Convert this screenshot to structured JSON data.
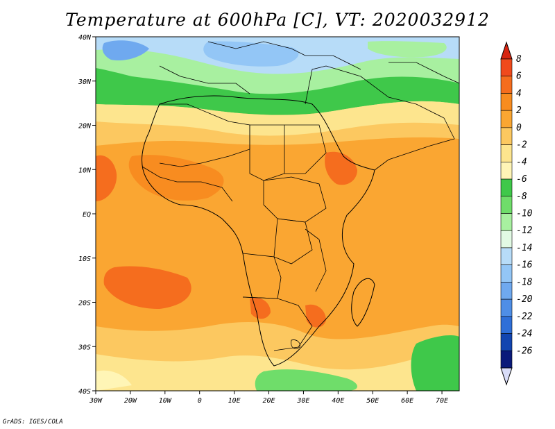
{
  "title": "Temperature at 600hPa [C], VT: 2020032912",
  "credit": "GrADS: IGES/COLA",
  "map": {
    "lon_ticks": [
      "30W",
      "20W",
      "10W",
      "0",
      "10E",
      "20E",
      "30E",
      "40E",
      "50E",
      "60E",
      "70E"
    ],
    "lat_ticks": [
      "40N",
      "30N",
      "20N",
      "10N",
      "EQ",
      "10S",
      "20S",
      "30S",
      "40S"
    ]
  },
  "colorbar": {
    "labels": [
      "8",
      "6",
      "4",
      "2",
      "0",
      "-2",
      "-4",
      "-6",
      "-8",
      "-10",
      "-12",
      "-14",
      "-16",
      "-18",
      "-20",
      "-22",
      "-24",
      "-26"
    ],
    "top_color": "#d62410",
    "bottom_color": "#d8dcf8",
    "colors": [
      "#f04a1c",
      "#f56d1e",
      "#f88c20",
      "#faa632",
      "#fcc860",
      "#fde58e",
      "#fff5b6",
      "#3fc84a",
      "#6fdd6a",
      "#a8f0a0",
      "#e2fae4",
      "#b7dcf8",
      "#93c6f6",
      "#6fa9ef",
      "#4f8ee6",
      "#2f6fd8",
      "#1245b0",
      "#0a1a7a"
    ]
  }
}
